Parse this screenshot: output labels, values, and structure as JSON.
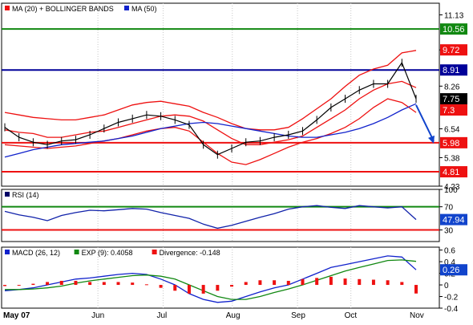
{
  "chart_data": [
    {
      "panel": "price",
      "type": "line",
      "legend": [
        {
          "text": "MA (20) + BOLLINGER BANDS",
          "color": "#ee1111"
        },
        {
          "text": "MA (50)",
          "color": "#1122cc"
        }
      ],
      "y_ticks": [
        11.13,
        9.72,
        8.26,
        6.54,
        5.38,
        4.23
      ],
      "ylim": [
        4.23,
        11.6
      ],
      "hlines": [
        {
          "label": "10.56",
          "value": 10.56,
          "color": "#118811"
        },
        {
          "label": "8.91",
          "value": 8.91,
          "color": "#000099"
        },
        {
          "label": "5.98",
          "value": 5.98,
          "color": "#ee1111"
        },
        {
          "label": "4.81",
          "value": 4.81,
          "color": "#ee1111"
        }
      ],
      "value_tags": [
        {
          "label": "9.72",
          "value": 9.72,
          "color": "#ee1111"
        },
        {
          "label": "7.75",
          "value": 7.75,
          "color": "#000000"
        },
        {
          "label": "7.3",
          "value": 7.3,
          "color": "#ee1111"
        }
      ],
      "series": [
        {
          "name": "MA (20)",
          "color": "#ee1111",
          "values": [
            6.5,
            6.4,
            6.35,
            6.2,
            6.2,
            6.3,
            6.4,
            6.45,
            6.6,
            6.75,
            6.9,
            7.05,
            7.1,
            7.05,
            6.85,
            6.5,
            6.15,
            5.9,
            5.9,
            6.0,
            6.1,
            6.25,
            6.6,
            6.95,
            7.3,
            7.75,
            8.1,
            8.35,
            8.45,
            8.2
          ]
        },
        {
          "name": "Upper band",
          "color": "#ee1111",
          "values": [
            7.2,
            7.1,
            7.0,
            6.95,
            6.9,
            6.9,
            7.0,
            7.1,
            7.3,
            7.5,
            7.6,
            7.65,
            7.55,
            7.45,
            7.2,
            7.0,
            6.75,
            6.55,
            6.5,
            6.5,
            6.6,
            6.95,
            7.35,
            7.75,
            8.25,
            8.7,
            8.95,
            9.1,
            9.6,
            9.7
          ]
        },
        {
          "name": "Lower band",
          "color": "#ee1111",
          "values": [
            5.9,
            5.85,
            5.8,
            5.75,
            5.8,
            5.85,
            5.95,
            6.05,
            6.15,
            6.3,
            6.45,
            6.55,
            6.6,
            6.45,
            6.0,
            5.55,
            5.2,
            5.1,
            5.3,
            5.55,
            5.8,
            6.0,
            6.15,
            6.35,
            6.6,
            6.95,
            7.4,
            7.75,
            7.6,
            7.2
          ]
        },
        {
          "name": "MA (50)",
          "color": "#1122cc",
          "values": [
            5.4,
            5.55,
            5.7,
            5.8,
            5.9,
            5.95,
            6.0,
            6.05,
            6.15,
            6.25,
            6.4,
            6.55,
            6.65,
            6.75,
            6.8,
            6.75,
            6.65,
            6.55,
            6.45,
            6.35,
            6.25,
            6.2,
            6.2,
            6.3,
            6.4,
            6.55,
            6.75,
            7.0,
            7.3,
            7.55
          ]
        },
        {
          "name": "Price",
          "color": "#000000",
          "values": [
            6.6,
            6.2,
            6.0,
            5.9,
            6.05,
            6.1,
            6.3,
            6.55,
            6.8,
            6.95,
            7.1,
            7.05,
            6.9,
            6.7,
            5.9,
            5.5,
            5.75,
            6.0,
            6.05,
            6.2,
            6.3,
            6.45,
            6.9,
            7.4,
            7.75,
            8.1,
            8.35,
            8.35,
            9.2,
            7.75
          ]
        }
      ],
      "arrow": {
        "from": 7.5,
        "to": 5.98,
        "color": "#1144cc"
      }
    },
    {
      "panel": "rsi",
      "type": "line",
      "legend": [
        {
          "text": "RSI (14)",
          "color": "#000066"
        }
      ],
      "y_ticks": [
        100,
        70,
        30
      ],
      "ylim": [
        10,
        100
      ],
      "hlines": [
        {
          "value": 70,
          "color": "#118811"
        },
        {
          "value": 30,
          "color": "#ee1111"
        }
      ],
      "value_tags": [
        {
          "label": "47.94",
          "value": 47.94,
          "color": "#1144cc"
        }
      ],
      "series": [
        {
          "name": "RSI (14)",
          "color": "#1122aa",
          "values": [
            62,
            56,
            52,
            46,
            55,
            60,
            64,
            63,
            65,
            67,
            66,
            60,
            55,
            50,
            40,
            33,
            38,
            45,
            52,
            58,
            66,
            70,
            72,
            69,
            67,
            72,
            70,
            68,
            70,
            47.94
          ]
        }
      ]
    },
    {
      "panel": "macd",
      "type": "line",
      "legend": [
        {
          "text": "MACD (26, 12)",
          "color": "#1122cc"
        },
        {
          "text": "EXP (9): 0.4058",
          "color": "#118811"
        },
        {
          "text": "Divergence: -0.148",
          "color": "#ee1111"
        }
      ],
      "y_ticks": [
        0.6,
        0.4,
        0.2,
        0.0,
        -0.2,
        -0.4
      ],
      "ylim": [
        -0.4,
        0.65
      ],
      "value_tags": [
        {
          "label": "0.26",
          "value": 0.26,
          "color": "#1144cc"
        }
      ],
      "series": [
        {
          "name": "MACD (26, 12)",
          "color": "#1122cc",
          "values": [
            -0.1,
            -0.08,
            -0.05,
            0.0,
            0.05,
            0.1,
            0.12,
            0.15,
            0.18,
            0.2,
            0.18,
            0.1,
            0.0,
            -0.15,
            -0.25,
            -0.3,
            -0.28,
            -0.2,
            -0.12,
            -0.05,
            0.0,
            0.1,
            0.2,
            0.3,
            0.35,
            0.4,
            0.45,
            0.5,
            0.48,
            0.26
          ]
        },
        {
          "name": "EXP (9)",
          "color": "#118811",
          "values": [
            -0.08,
            -0.08,
            -0.07,
            -0.05,
            -0.02,
            0.03,
            0.07,
            0.1,
            0.13,
            0.16,
            0.17,
            0.15,
            0.1,
            0.0,
            -0.1,
            -0.2,
            -0.25,
            -0.25,
            -0.2,
            -0.13,
            -0.07,
            0.0,
            0.08,
            0.16,
            0.24,
            0.3,
            0.36,
            0.42,
            0.43,
            0.4058
          ]
        },
        {
          "name": "Divergence",
          "color": "#ee1111",
          "values": [
            -0.02,
            0.0,
            0.02,
            0.05,
            0.07,
            0.07,
            0.05,
            0.05,
            0.05,
            0.04,
            0.01,
            -0.05,
            -0.1,
            -0.15,
            -0.15,
            -0.1,
            -0.03,
            0.05,
            0.08,
            0.08,
            0.07,
            0.1,
            0.12,
            0.14,
            0.11,
            0.1,
            0.09,
            0.08,
            0.05,
            -0.148
          ]
        }
      ]
    }
  ],
  "x_axis": {
    "labels": [
      {
        "label": "May 07",
        "pos": 0.0
      },
      {
        "label": "Jun",
        "pos": 0.195
      },
      {
        "label": "Jul",
        "pos": 0.36
      },
      {
        "label": "Aug",
        "pos": 0.535
      },
      {
        "label": "Sep",
        "pos": 0.7
      },
      {
        "label": "Oct",
        "pos": 0.835
      },
      {
        "label": "Nov",
        "pos": 1.0
      }
    ]
  }
}
